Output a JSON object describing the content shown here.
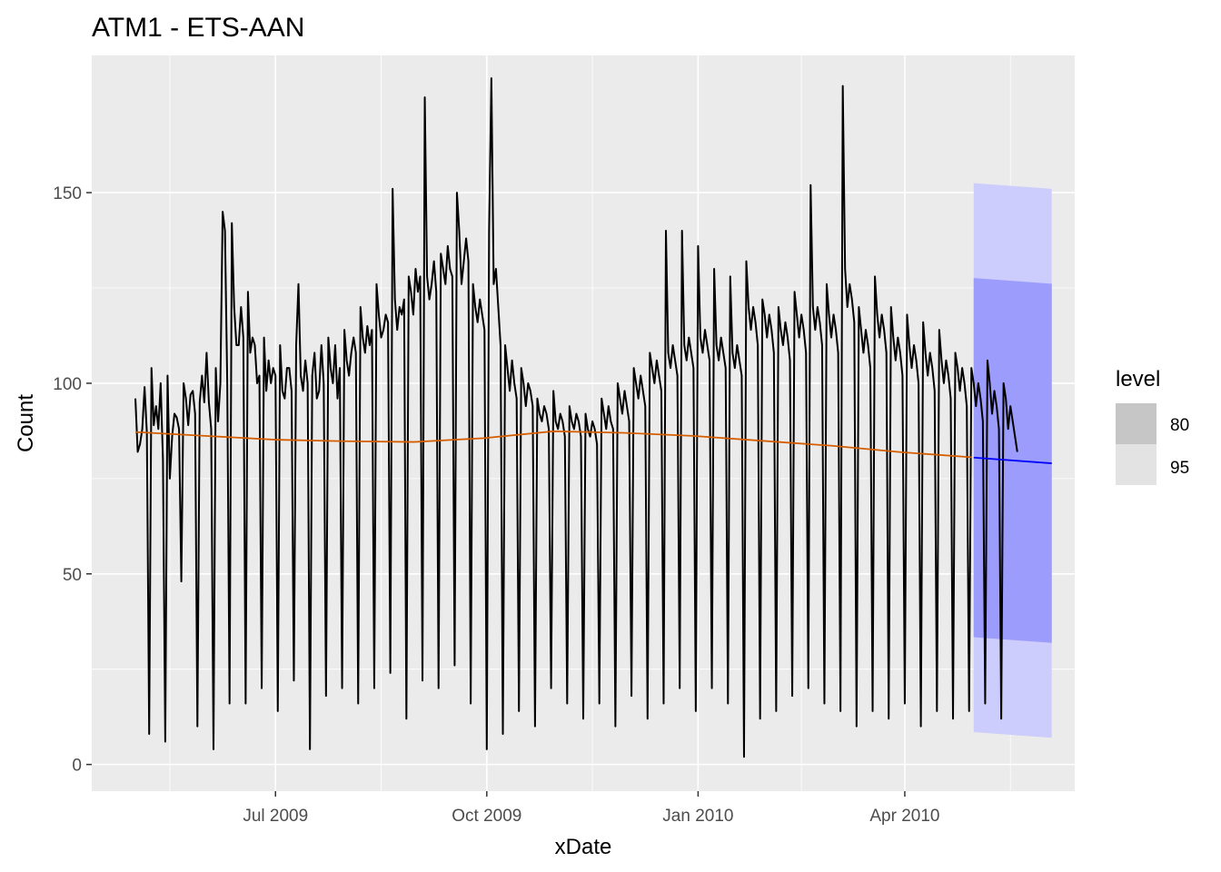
{
  "chart_data": {
    "type": "line",
    "title": "ATM1 - ETS-AAN",
    "xlabel": "xDate",
    "ylabel": "Count",
    "x_range": [
      "2009-04-12",
      "2010-06-14"
    ],
    "ylim": [
      -7,
      186
    ],
    "x_ticks": [
      {
        "label": "Jul 2009",
        "date": "2009-07-01"
      },
      {
        "label": "Oct 2009",
        "date": "2009-10-01"
      },
      {
        "label": "Jan 2010",
        "date": "2010-01-01"
      },
      {
        "label": "Apr 2010",
        "date": "2010-04-01"
      }
    ],
    "y_ticks": [
      0,
      50,
      100,
      150
    ],
    "grid": true,
    "colors": {
      "panel": "#ebebeb",
      "grid": "#ffffff",
      "observed": "#000000",
      "fitted": "#d55e00",
      "forecast": "#0000ff",
      "band80": "#9c9cfd",
      "band95": "#cccdfd",
      "legend80": "#c6c6c6",
      "legend95": "#e3e3e3"
    },
    "legend": {
      "title": "level",
      "position": "right",
      "entries": [
        {
          "label": "80"
        },
        {
          "label": "95"
        }
      ]
    },
    "series": [
      {
        "role": "observed",
        "start": "2009-05-01",
        "step_days": 1,
        "values": [
          96,
          82,
          84,
          88,
          99,
          87,
          8,
          104,
          89,
          94,
          88,
          100,
          80,
          6,
          102,
          75,
          86,
          92,
          91,
          88,
          48,
          100,
          96,
          89,
          97,
          98,
          92,
          10,
          95,
          102,
          95,
          108,
          95,
          88,
          4,
          104,
          90,
          100,
          145,
          140,
          100,
          16,
          142,
          120,
          110,
          110,
          120,
          112,
          16,
          124,
          108,
          112,
          110,
          100,
          102,
          20,
          112,
          98,
          106,
          100,
          104,
          102,
          14,
          110,
          98,
          96,
          104,
          104,
          98,
          22,
          110,
          126,
          102,
          98,
          106,
          100,
          4,
          102,
          108,
          96,
          98,
          110,
          100,
          18,
          112,
          104,
          100,
          110,
          96,
          104,
          20,
          114,
          106,
          102,
          108,
          112,
          108,
          16,
          120,
          112,
          108,
          115,
          110,
          114,
          20,
          126,
          118,
          112,
          114,
          118,
          116,
          24,
          151,
          122,
          114,
          120,
          118,
          122,
          12,
          128,
          124,
          118,
          130,
          124,
          128,
          22,
          175,
          128,
          122,
          126,
          132,
          124,
          20,
          134,
          130,
          126,
          136,
          130,
          128,
          26,
          150,
          140,
          126,
          132,
          138,
          132,
          16,
          126,
          120,
          116,
          122,
          118,
          114,
          4,
          140,
          180,
          126,
          130,
          120,
          110,
          8,
          110,
          104,
          98,
          106,
          100,
          96,
          14,
          104,
          100,
          94,
          100,
          98,
          94,
          10,
          96,
          92,
          90,
          94,
          92,
          88,
          20,
          98,
          90,
          88,
          92,
          90,
          86,
          16,
          94,
          90,
          88,
          92,
          90,
          86,
          12,
          92,
          88,
          86,
          90,
          88,
          84,
          16,
          96,
          92,
          88,
          94,
          90,
          88,
          10,
          100,
          96,
          92,
          98,
          94,
          90,
          18,
          104,
          100,
          96,
          102,
          98,
          94,
          12,
          108,
          104,
          100,
          106,
          102,
          98,
          16,
          140,
          108,
          104,
          110,
          106,
          102,
          20,
          140,
          110,
          106,
          112,
          108,
          104,
          14,
          136,
          112,
          108,
          114,
          110,
          106,
          20,
          130,
          110,
          106,
          112,
          108,
          104,
          16,
          128,
          108,
          104,
          110,
          106,
          102,
          2,
          132,
          120,
          114,
          120,
          116,
          110,
          12,
          122,
          118,
          112,
          118,
          114,
          108,
          14,
          120,
          114,
          110,
          116,
          112,
          106,
          18,
          124,
          118,
          112,
          118,
          114,
          108,
          20,
          152,
          120,
          114,
          120,
          116,
          110,
          16,
          126,
          118,
          112,
          118,
          114,
          108,
          14,
          178,
          130,
          120,
          126,
          122,
          116,
          10,
          120,
          114,
          108,
          114,
          110,
          104,
          14,
          128,
          118,
          112,
          118,
          114,
          108,
          12,
          120,
          112,
          106,
          112,
          108,
          102,
          16,
          118,
          110,
          104,
          110,
          106,
          100,
          10,
          116,
          108,
          102,
          108,
          104,
          98,
          14,
          114,
          106,
          100,
          106,
          102,
          96,
          12,
          108,
          104,
          98,
          104,
          100,
          94,
          14,
          104,
          100,
          94,
          100,
          96,
          90,
          16,
          106,
          100,
          92,
          98,
          94,
          88,
          12,
          100,
          96,
          88,
          94,
          90,
          86,
          82
        ]
      },
      {
        "role": "fitted",
        "start": "2009-05-01",
        "end": "2010-04-30",
        "knots": [
          87.2,
          86.2,
          85.2,
          84.8,
          84.6,
          85.6,
          87.4,
          87.0,
          86.2,
          84.9,
          83.6,
          81.9,
          80.6
        ]
      },
      {
        "role": "forecast",
        "start": "2010-05-01",
        "end": "2010-06-04",
        "point": [
          80.5,
          79.0
        ],
        "lo80": [
          33.4,
          31.9
        ],
        "hi80": [
          127.6,
          126.1
        ],
        "lo95": [
          8.5,
          7.0
        ],
        "hi95": [
          152.5,
          151.0
        ]
      }
    ]
  }
}
